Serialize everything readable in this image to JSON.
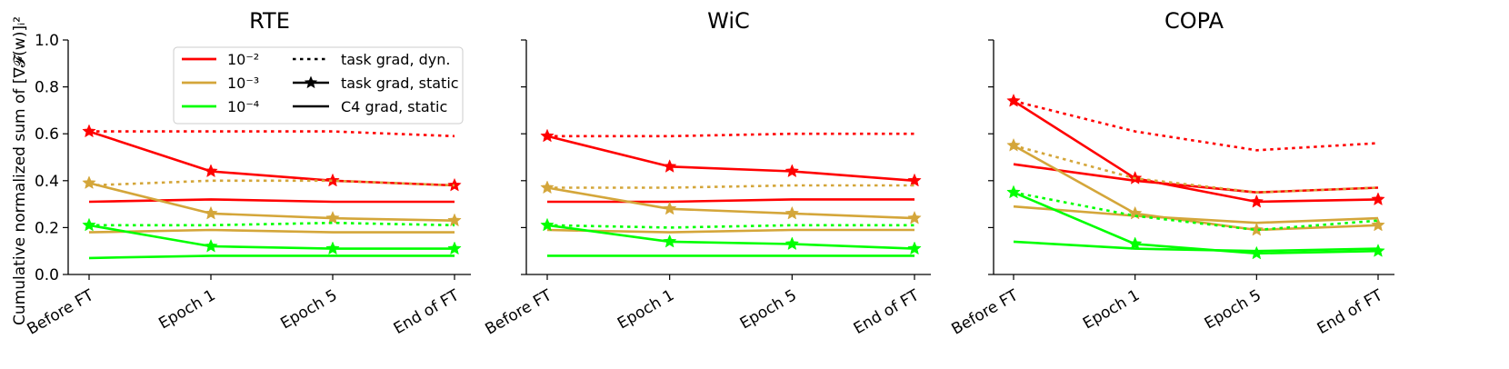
{
  "figure": {
    "ylabel": "Cumulative normalized sum of [∇𝓕(w)]ᵢ²"
  },
  "legend": {
    "colors": [
      {
        "label": "10⁻²",
        "color": "#ff0000"
      },
      {
        "label": "10⁻³",
        "color": "#d4a63a"
      },
      {
        "label": "10⁻⁴",
        "color": "#00ff00"
      }
    ],
    "styles": [
      {
        "label": "task grad, dyn.",
        "style": "dotted"
      },
      {
        "label": "task grad, static",
        "style": "solid-star"
      },
      {
        "label": "C4 grad, static",
        "style": "solid"
      }
    ],
    "placement": "top-center of first panel"
  },
  "chart_data": [
    {
      "type": "line",
      "title": "RTE",
      "categories": [
        "Before FT",
        "Epoch 1",
        "Epoch 5",
        "End of FT"
      ],
      "ylim": [
        0.0,
        1.0
      ],
      "yticks": [
        "0.0",
        "0.2",
        "0.4",
        "0.6",
        "0.8",
        "1.0"
      ],
      "series": [
        {
          "lr": "10⁻²",
          "color": "#ff0000",
          "style": "dotted",
          "values": [
            0.61,
            0.61,
            0.61,
            0.59
          ]
        },
        {
          "lr": "10⁻²",
          "color": "#ff0000",
          "style": "solid-star",
          "values": [
            0.61,
            0.44,
            0.4,
            0.38
          ]
        },
        {
          "lr": "10⁻²",
          "color": "#ff0000",
          "style": "solid",
          "values": [
            0.31,
            0.32,
            0.31,
            0.31
          ]
        },
        {
          "lr": "10⁻³",
          "color": "#d4a63a",
          "style": "dotted",
          "values": [
            0.38,
            0.4,
            0.4,
            0.38
          ]
        },
        {
          "lr": "10⁻³",
          "color": "#d4a63a",
          "style": "solid-star",
          "values": [
            0.39,
            0.26,
            0.24,
            0.23
          ]
        },
        {
          "lr": "10⁻³",
          "color": "#d4a63a",
          "style": "solid",
          "values": [
            0.18,
            0.19,
            0.18,
            0.18
          ]
        },
        {
          "lr": "10⁻⁴",
          "color": "#00ff00",
          "style": "dotted",
          "values": [
            0.21,
            0.21,
            0.22,
            0.21
          ]
        },
        {
          "lr": "10⁻⁴",
          "color": "#00ff00",
          "style": "solid-star",
          "values": [
            0.21,
            0.12,
            0.11,
            0.11
          ]
        },
        {
          "lr": "10⁻⁴",
          "color": "#00ff00",
          "style": "solid",
          "values": [
            0.07,
            0.08,
            0.08,
            0.08
          ]
        }
      ]
    },
    {
      "type": "line",
      "title": "WiC",
      "categories": [
        "Before FT",
        "Epoch 1",
        "Epoch 5",
        "End of FT"
      ],
      "ylim": [
        0.0,
        1.0
      ],
      "yticks": [
        "",
        "",
        "",
        "",
        "",
        ""
      ],
      "series": [
        {
          "lr": "10⁻²",
          "color": "#ff0000",
          "style": "dotted",
          "values": [
            0.59,
            0.59,
            0.6,
            0.6
          ]
        },
        {
          "lr": "10⁻²",
          "color": "#ff0000",
          "style": "solid-star",
          "values": [
            0.59,
            0.46,
            0.44,
            0.4
          ]
        },
        {
          "lr": "10⁻²",
          "color": "#ff0000",
          "style": "solid",
          "values": [
            0.31,
            0.31,
            0.32,
            0.32
          ]
        },
        {
          "lr": "10⁻³",
          "color": "#d4a63a",
          "style": "dotted",
          "values": [
            0.37,
            0.37,
            0.38,
            0.38
          ]
        },
        {
          "lr": "10⁻³",
          "color": "#d4a63a",
          "style": "solid-star",
          "values": [
            0.37,
            0.28,
            0.26,
            0.24
          ]
        },
        {
          "lr": "10⁻³",
          "color": "#d4a63a",
          "style": "solid",
          "values": [
            0.19,
            0.18,
            0.19,
            0.19
          ]
        },
        {
          "lr": "10⁻⁴",
          "color": "#00ff00",
          "style": "dotted",
          "values": [
            0.21,
            0.2,
            0.21,
            0.21
          ]
        },
        {
          "lr": "10⁻⁴",
          "color": "#00ff00",
          "style": "solid-star",
          "values": [
            0.21,
            0.14,
            0.13,
            0.11
          ]
        },
        {
          "lr": "10⁻⁴",
          "color": "#00ff00",
          "style": "solid",
          "values": [
            0.08,
            0.08,
            0.08,
            0.08
          ]
        }
      ]
    },
    {
      "type": "line",
      "title": "COPA",
      "categories": [
        "Before FT",
        "Epoch 1",
        "Epoch 5",
        "End of FT"
      ],
      "ylim": [
        0.0,
        1.0
      ],
      "yticks": [
        "",
        "",
        "",
        "",
        "",
        ""
      ],
      "series": [
        {
          "lr": "10⁻²",
          "color": "#ff0000",
          "style": "dotted",
          "values": [
            0.74,
            0.61,
            0.53,
            0.56
          ]
        },
        {
          "lr": "10⁻²",
          "color": "#ff0000",
          "style": "solid-star",
          "values": [
            0.74,
            0.41,
            0.31,
            0.32
          ]
        },
        {
          "lr": "10⁻²",
          "color": "#ff0000",
          "style": "solid",
          "values": [
            0.47,
            0.4,
            0.35,
            0.37
          ]
        },
        {
          "lr": "10⁻³",
          "color": "#d4a63a",
          "style": "dotted",
          "values": [
            0.55,
            0.41,
            0.35,
            0.37
          ]
        },
        {
          "lr": "10⁻³",
          "color": "#d4a63a",
          "style": "solid-star",
          "values": [
            0.55,
            0.26,
            0.19,
            0.21
          ]
        },
        {
          "lr": "10⁻³",
          "color": "#d4a63a",
          "style": "solid",
          "values": [
            0.29,
            0.25,
            0.22,
            0.24
          ]
        },
        {
          "lr": "10⁻⁴",
          "color": "#00ff00",
          "style": "dotted",
          "values": [
            0.35,
            0.25,
            0.19,
            0.23
          ]
        },
        {
          "lr": "10⁻⁴",
          "color": "#00ff00",
          "style": "solid-star",
          "values": [
            0.35,
            0.13,
            0.09,
            0.1
          ]
        },
        {
          "lr": "10⁻⁴",
          "color": "#00ff00",
          "style": "solid",
          "values": [
            0.14,
            0.11,
            0.1,
            0.11
          ]
        }
      ]
    }
  ]
}
